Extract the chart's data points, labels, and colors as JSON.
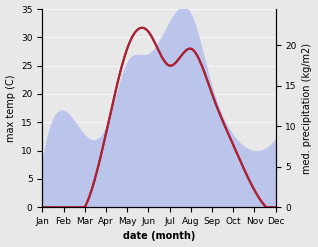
{
  "months": [
    "Jan",
    "Feb",
    "Mar",
    "Apr",
    "May",
    "Jun",
    "Jul",
    "Aug",
    "Sep",
    "Oct",
    "Nov",
    "Dec"
  ],
  "temp_max": [
    -1,
    -1,
    0,
    13,
    28,
    31,
    25,
    28,
    20,
    11,
    3,
    -1
  ],
  "precipitation": [
    6,
    12,
    9,
    10,
    18,
    19,
    23,
    24,
    15,
    9,
    7,
    8.5
  ],
  "temp_ylim": [
    0,
    35
  ],
  "precip_ylim": [
    0,
    24.5
  ],
  "temp_color": "#aa2233",
  "precip_fill_color": "#bbc4ea",
  "xlabel": "date (month)",
  "ylabel_left": "max temp (C)",
  "ylabel_right": "med. precipitation (kg/m2)",
  "yticks_left": [
    0,
    5,
    10,
    15,
    20,
    25,
    30,
    35
  ],
  "yticks_right": [
    0,
    5,
    10,
    15,
    20
  ],
  "label_fontsize": 7,
  "tick_fontsize": 6.5,
  "bg_color": "#e8e8e8"
}
